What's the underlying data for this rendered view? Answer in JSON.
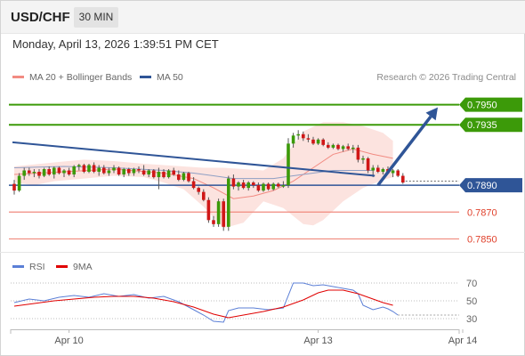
{
  "header": {
    "symbol": "USD/CHF",
    "timeframe": "30 MIN"
  },
  "timestamp": "Monday, April 13, 2026 1:39:51 PM CET",
  "legend": {
    "bb": {
      "label": "MA 20 + Bollinger Bands",
      "color": "#f28b82"
    },
    "ma50": {
      "label": "MA 50",
      "color": "#2f5597"
    },
    "credit": "Research © 2026 Trading Central"
  },
  "rsi_legend": {
    "rsi": {
      "label": "RSI",
      "color": "#5b7fd6"
    },
    "ma": {
      "label": "9MA",
      "color": "#e00000"
    }
  },
  "chart_data": {
    "type": "candlestick",
    "y_range": [
      0.7841,
      0.7963
    ],
    "levels": [
      {
        "value": "0.7950",
        "price": 0.795,
        "color": "#3c9a09",
        "style": "resistance"
      },
      {
        "value": "0.7935",
        "price": 0.7935,
        "color": "#3c9a09",
        "style": "resistance"
      },
      {
        "value": "0.7890",
        "price": 0.789,
        "color": "#2f5597",
        "style": "pivot"
      },
      {
        "value": "0.7870",
        "price": 0.787,
        "color": "#f08a7e",
        "style": "support"
      },
      {
        "value": "0.7850",
        "price": 0.785,
        "color": "#f08a7e",
        "style": "support"
      }
    ],
    "current_price": 0.7893,
    "x_ticks": [
      {
        "label": "Apr 10",
        "bar": 11
      },
      {
        "label": "Apr 13",
        "bar": 61
      },
      {
        "label": "Apr 14",
        "bar": 90
      }
    ],
    "candles": [
      [
        0.7891,
        0.7894,
        0.7883,
        0.7886
      ],
      [
        0.7886,
        0.7899,
        0.7885,
        0.7897
      ],
      [
        0.7897,
        0.7903,
        0.7894,
        0.7901
      ],
      [
        0.7901,
        0.7903,
        0.7897,
        0.7899
      ],
      [
        0.7899,
        0.7902,
        0.7896,
        0.79
      ],
      [
        0.79,
        0.7902,
        0.7895,
        0.7897
      ],
      [
        0.7897,
        0.7903,
        0.7896,
        0.7902
      ],
      [
        0.7902,
        0.7904,
        0.7897,
        0.7898
      ],
      [
        0.7898,
        0.7904,
        0.7895,
        0.7903
      ],
      [
        0.7903,
        0.7904,
        0.7898,
        0.7899
      ],
      [
        0.7899,
        0.7902,
        0.7896,
        0.7901
      ],
      [
        0.7901,
        0.7903,
        0.7897,
        0.7898
      ],
      [
        0.7898,
        0.7905,
        0.7896,
        0.7904
      ],
      [
        0.7904,
        0.7906,
        0.7901,
        0.7905
      ],
      [
        0.7905,
        0.7906,
        0.7899,
        0.79
      ],
      [
        0.79,
        0.7906,
        0.7899,
        0.7905
      ],
      [
        0.7905,
        0.7907,
        0.7899,
        0.79
      ],
      [
        0.79,
        0.7905,
        0.7897,
        0.7903
      ],
      [
        0.7903,
        0.7905,
        0.7898,
        0.7899
      ],
      [
        0.7899,
        0.7903,
        0.7897,
        0.7901
      ],
      [
        0.7901,
        0.7905,
        0.7899,
        0.7903
      ],
      [
        0.7903,
        0.7904,
        0.7897,
        0.7898
      ],
      [
        0.7898,
        0.7903,
        0.7896,
        0.7902
      ],
      [
        0.7902,
        0.7903,
        0.7897,
        0.7899
      ],
      [
        0.7899,
        0.7903,
        0.7897,
        0.7902
      ],
      [
        0.7902,
        0.7904,
        0.7899,
        0.7901
      ],
      [
        0.7901,
        0.7905,
        0.7897,
        0.7898
      ],
      [
        0.7898,
        0.7902,
        0.7896,
        0.7901
      ],
      [
        0.7901,
        0.7902,
        0.7895,
        0.7896
      ],
      [
        0.7896,
        0.7903,
        0.7887,
        0.79
      ],
      [
        0.79,
        0.7902,
        0.7895,
        0.7896
      ],
      [
        0.7896,
        0.7902,
        0.7895,
        0.7901
      ],
      [
        0.7901,
        0.7903,
        0.7897,
        0.7898
      ],
      [
        0.7898,
        0.7901,
        0.7893,
        0.7894
      ],
      [
        0.7894,
        0.79,
        0.7893,
        0.7899
      ],
      [
        0.7899,
        0.79,
        0.7892,
        0.7893
      ],
      [
        0.7893,
        0.7896,
        0.7887,
        0.7888
      ],
      [
        0.7888,
        0.7889,
        0.7883,
        0.7885
      ],
      [
        0.7885,
        0.7887,
        0.7878,
        0.7879
      ],
      [
        0.7879,
        0.7881,
        0.7862,
        0.7864
      ],
      [
        0.7864,
        0.7867,
        0.7859,
        0.7861
      ],
      [
        0.7861,
        0.788,
        0.7859,
        0.7878
      ],
      [
        0.7878,
        0.788,
        0.7856,
        0.7859
      ],
      [
        0.7859,
        0.7897,
        0.7856,
        0.7895
      ],
      [
        0.7895,
        0.7898,
        0.7887,
        0.7889
      ],
      [
        0.7889,
        0.7893,
        0.7886,
        0.7892
      ],
      [
        0.7892,
        0.7894,
        0.7887,
        0.7888
      ],
      [
        0.7888,
        0.7893,
        0.7886,
        0.7892
      ],
      [
        0.7892,
        0.7893,
        0.7888,
        0.789
      ],
      [
        0.789,
        0.7892,
        0.7885,
        0.7886
      ],
      [
        0.7886,
        0.7892,
        0.7885,
        0.7891
      ],
      [
        0.7891,
        0.7892,
        0.7886,
        0.7887
      ],
      [
        0.7887,
        0.7892,
        0.7886,
        0.7891
      ],
      [
        0.7891,
        0.7892,
        0.7888,
        0.7889
      ],
      [
        0.7889,
        0.7893,
        0.7888,
        0.789
      ],
      [
        0.789,
        0.7925,
        0.7888,
        0.7921
      ],
      [
        0.7921,
        0.7929,
        0.7918,
        0.7927
      ],
      [
        0.7927,
        0.7931,
        0.7924,
        0.7928
      ],
      [
        0.7928,
        0.793,
        0.7923,
        0.7925
      ],
      [
        0.7925,
        0.7928,
        0.7922,
        0.7924
      ],
      [
        0.7924,
        0.7926,
        0.792,
        0.7921
      ],
      [
        0.7921,
        0.7925,
        0.792,
        0.7924
      ],
      [
        0.7924,
        0.7925,
        0.7919,
        0.792
      ],
      [
        0.792,
        0.7922,
        0.7917,
        0.7918
      ],
      [
        0.7918,
        0.7921,
        0.7917,
        0.792
      ],
      [
        0.792,
        0.7921,
        0.7916,
        0.7917
      ],
      [
        0.7917,
        0.792,
        0.7915,
        0.7919
      ],
      [
        0.7919,
        0.7921,
        0.7916,
        0.7917
      ],
      [
        0.7917,
        0.792,
        0.7914,
        0.7918
      ],
      [
        0.7918,
        0.792,
        0.7907,
        0.7909
      ],
      [
        0.7909,
        0.7912,
        0.7906,
        0.791
      ],
      [
        0.791,
        0.7911,
        0.7899,
        0.7901
      ],
      [
        0.7901,
        0.7905,
        0.7896,
        0.7903
      ],
      [
        0.7903,
        0.7905,
        0.7899,
        0.79
      ],
      [
        0.79,
        0.7903,
        0.7898,
        0.7902
      ],
      [
        0.7902,
        0.7904,
        0.7898,
        0.7899
      ],
      [
        0.7899,
        0.7902,
        0.7896,
        0.7901
      ],
      [
        0.7901,
        0.7902,
        0.7896,
        0.7897
      ],
      [
        0.7897,
        0.7899,
        0.7891,
        0.7892
      ]
    ],
    "trendline": {
      "from": [
        0,
        0.7922
      ],
      "to": [
        72,
        0.7897
      ],
      "color": "#2f5597"
    },
    "projection": {
      "from": [
        73,
        0.789
      ],
      "to": [
        85,
        0.7948
      ],
      "color": "#2f5597"
    },
    "ma50": [
      [
        0,
        0.7903
      ],
      [
        10,
        0.7904
      ],
      [
        20,
        0.7903
      ],
      [
        30,
        0.7901
      ],
      [
        36,
        0.7899
      ],
      [
        40,
        0.7897
      ],
      [
        44,
        0.7895
      ],
      [
        48,
        0.7895
      ],
      [
        52,
        0.7895
      ],
      [
        56,
        0.7897
      ],
      [
        60,
        0.7899
      ],
      [
        64,
        0.7901
      ],
      [
        68,
        0.7901
      ],
      [
        72,
        0.7901
      ]
    ],
    "bb_upper": [
      [
        0,
        0.7904
      ],
      [
        8,
        0.7907
      ],
      [
        14,
        0.7909
      ],
      [
        20,
        0.7908
      ],
      [
        26,
        0.7906
      ],
      [
        30,
        0.7905
      ],
      [
        34,
        0.7904
      ],
      [
        38,
        0.7903
      ],
      [
        42,
        0.7903
      ],
      [
        46,
        0.7902
      ],
      [
        50,
        0.7901
      ],
      [
        54,
        0.791
      ],
      [
        58,
        0.793
      ],
      [
        62,
        0.7937
      ],
      [
        66,
        0.7937
      ],
      [
        70,
        0.7934
      ],
      [
        74,
        0.7929
      ],
      [
        76,
        0.7923
      ]
    ],
    "bb_lower": [
      [
        0,
        0.7892
      ],
      [
        4,
        0.789
      ],
      [
        8,
        0.7893
      ],
      [
        14,
        0.7895
      ],
      [
        20,
        0.7897
      ],
      [
        26,
        0.7896
      ],
      [
        30,
        0.7892
      ],
      [
        34,
        0.7887
      ],
      [
        38,
        0.7874
      ],
      [
        42,
        0.7858
      ],
      [
        46,
        0.7862
      ],
      [
        50,
        0.7878
      ],
      [
        54,
        0.7873
      ],
      [
        58,
        0.7861
      ],
      [
        60,
        0.786
      ],
      [
        62,
        0.7864
      ],
      [
        66,
        0.7878
      ],
      [
        70,
        0.7888
      ],
      [
        74,
        0.7894
      ],
      [
        76,
        0.7896
      ]
    ],
    "bb_mid": [
      [
        0,
        0.7898
      ],
      [
        10,
        0.79
      ],
      [
        20,
        0.7902
      ],
      [
        30,
        0.7899
      ],
      [
        36,
        0.7895
      ],
      [
        40,
        0.7888
      ],
      [
        44,
        0.788
      ],
      [
        48,
        0.7882
      ],
      [
        52,
        0.7886
      ],
      [
        56,
        0.7893
      ],
      [
        60,
        0.7903
      ],
      [
        64,
        0.7913
      ],
      [
        68,
        0.7917
      ],
      [
        72,
        0.7913
      ],
      [
        76,
        0.791
      ]
    ],
    "rsi": {
      "y_range": [
        20,
        80
      ],
      "ticks": [
        "70",
        "50",
        "30"
      ],
      "rsi": [
        [
          0,
          48
        ],
        [
          3,
          52
        ],
        [
          6,
          50
        ],
        [
          9,
          54
        ],
        [
          12,
          56
        ],
        [
          15,
          54
        ],
        [
          18,
          58
        ],
        [
          21,
          55
        ],
        [
          24,
          57
        ],
        [
          27,
          53
        ],
        [
          30,
          55
        ],
        [
          33,
          49
        ],
        [
          36,
          40
        ],
        [
          38,
          34
        ],
        [
          40,
          27
        ],
        [
          42,
          26
        ],
        [
          43,
          39
        ],
        [
          45,
          42
        ],
        [
          48,
          42
        ],
        [
          51,
          40
        ],
        [
          54,
          42
        ],
        [
          56,
          70
        ],
        [
          58,
          70
        ],
        [
          60,
          67
        ],
        [
          62,
          68
        ],
        [
          64,
          66
        ],
        [
          66,
          64
        ],
        [
          68,
          62
        ],
        [
          69,
          58
        ],
        [
          70,
          45
        ],
        [
          72,
          40
        ],
        [
          74,
          43
        ],
        [
          75,
          41
        ],
        [
          76,
          38
        ],
        [
          77,
          34
        ]
      ],
      "ma": [
        [
          0,
          44
        ],
        [
          4,
          47
        ],
        [
          8,
          50
        ],
        [
          12,
          52
        ],
        [
          16,
          54
        ],
        [
          20,
          55
        ],
        [
          24,
          55
        ],
        [
          28,
          53
        ],
        [
          32,
          49
        ],
        [
          36,
          43
        ],
        [
          40,
          35
        ],
        [
          43,
          31
        ],
        [
          46,
          34
        ],
        [
          50,
          38
        ],
        [
          54,
          43
        ],
        [
          58,
          51
        ],
        [
          61,
          59
        ],
        [
          63,
          62
        ],
        [
          66,
          62
        ],
        [
          69,
          58
        ],
        [
          72,
          52
        ],
        [
          74,
          48
        ],
        [
          76,
          45
        ]
      ]
    }
  }
}
